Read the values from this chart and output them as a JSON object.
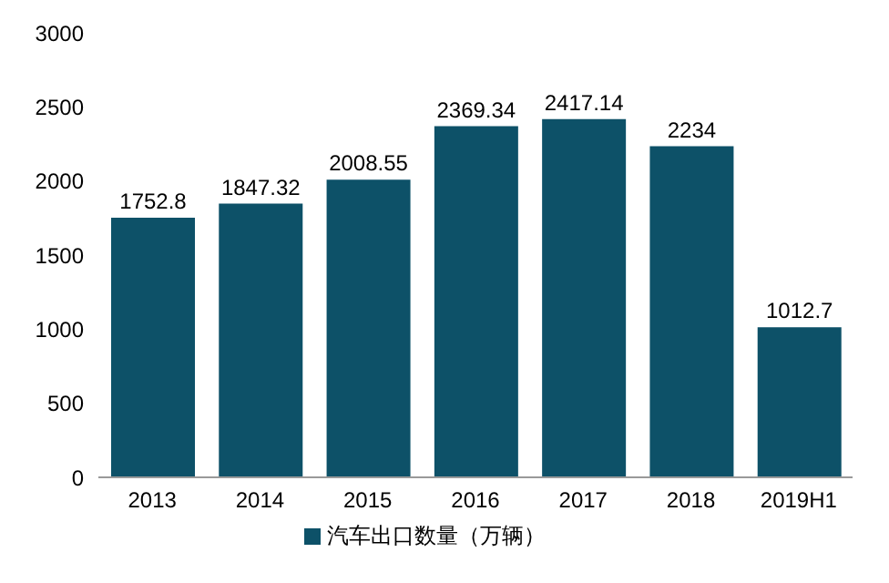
{
  "chart_data": {
    "type": "bar",
    "categories": [
      "2013",
      "2014",
      "2015",
      "2016",
      "2017",
      "2018",
      "2019H1"
    ],
    "series": [
      {
        "name": "汽车出口数量（万辆）",
        "color": "#0d5168",
        "values": [
          1752.8,
          1847.32,
          2008.55,
          2369.34,
          2417.14,
          2234,
          1012.7
        ]
      }
    ],
    "ylim": [
      0,
      3000
    ],
    "yticks": [
      0,
      500,
      1000,
      1500,
      2000,
      2500,
      3000
    ],
    "grid": false,
    "legend": "bottom",
    "data_labels": true
  }
}
